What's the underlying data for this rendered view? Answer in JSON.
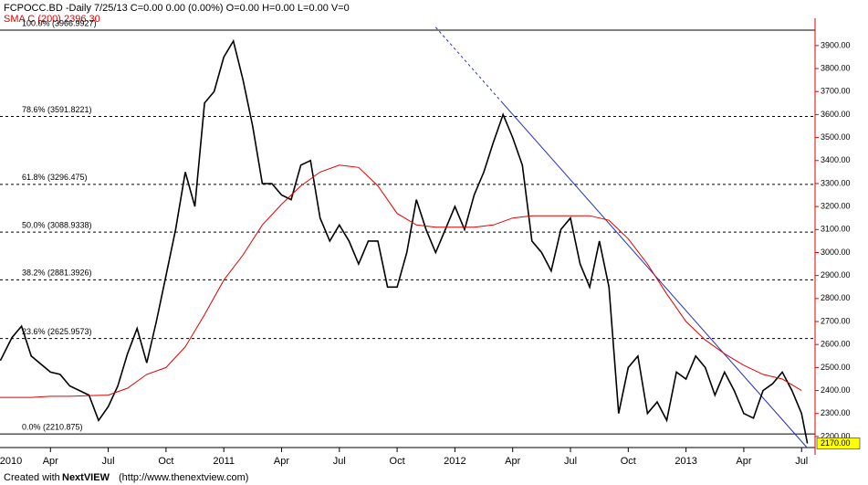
{
  "chart_data": {
    "type": "line",
    "header": "FCPOCC.BD -Daily  7/25/13     C=0.00     0.00 (0.00%)     O=0.00     H=0.00     L=0.00     V=0",
    "footer_prefix": "Created with",
    "footer_brand": "NextVIEW",
    "footer_url": "(http://www.thenextview.com)",
    "xlim": [
      0.38,
      42.7
    ],
    "xticks": [
      {
        "value": 0,
        "label": "2010"
      },
      {
        "value": 3,
        "label": "Apr"
      },
      {
        "value": 6,
        "label": "Jul"
      },
      {
        "value": 9,
        "label": "Oct"
      },
      {
        "value": 12,
        "label": "2011"
      },
      {
        "value": 15,
        "label": "Apr"
      },
      {
        "value": 18,
        "label": "Jul"
      },
      {
        "value": 21,
        "label": "Oct"
      },
      {
        "value": 24,
        "label": "2012"
      },
      {
        "value": 27,
        "label": "Apr"
      },
      {
        "value": 30,
        "label": "Jul"
      },
      {
        "value": 33,
        "label": "Oct"
      },
      {
        "value": 36,
        "label": "2013"
      },
      {
        "value": 39,
        "label": "Apr"
      },
      {
        "value": 42,
        "label": "Jul"
      }
    ],
    "ylim": [
      2152,
      3979
    ],
    "yticks": [
      {
        "value": 2200,
        "label": "2200.00"
      },
      {
        "value": 2300,
        "label": "2300.00"
      },
      {
        "value": 2400,
        "label": "2400.00"
      },
      {
        "value": 2500,
        "label": "2500.00"
      },
      {
        "value": 2600,
        "label": "2600.00"
      },
      {
        "value": 2700,
        "label": "2700.00"
      },
      {
        "value": 2800,
        "label": "2800.00"
      },
      {
        "value": 2900,
        "label": "2900.00"
      },
      {
        "value": 3000,
        "label": "3000.00"
      },
      {
        "value": 3100,
        "label": "3100.00"
      },
      {
        "value": 3200,
        "label": "3200.00"
      },
      {
        "value": 3300,
        "label": "3300.00"
      },
      {
        "value": 3400,
        "label": "3400.00"
      },
      {
        "value": 3500,
        "label": "3500.00"
      },
      {
        "value": 3600,
        "label": "3600.00"
      },
      {
        "value": 3700,
        "label": "3700.00"
      },
      {
        "value": 3800,
        "label": "3800.00"
      },
      {
        "value": 3900,
        "label": "3900.00"
      }
    ],
    "last_price": {
      "value": 2170,
      "label": "2170.00"
    },
    "fib_levels": [
      {
        "value": 3966.9927,
        "label": "100.0% (3966.9927)"
      },
      {
        "value": 3591.8221,
        "label": "78.6% (3591.8221)"
      },
      {
        "value": 3296.475,
        "label": "61.8% (3296.475)"
      },
      {
        "value": 3088.9338,
        "label": "50.0% (3088.9338)"
      },
      {
        "value": 2881.3926,
        "label": "38.2% (2881.3926)"
      },
      {
        "value": 2625.9573,
        "label": "23.6% (2625.9573)"
      },
      {
        "value": 2210.875,
        "label": "0.0% (2210.875)"
      }
    ],
    "trendline": {
      "color": "#2030c0",
      "x": [
        23.0,
        42.3
      ],
      "values": [
        3980,
        2150
      ]
    },
    "series": [
      {
        "color": "#000000",
        "x": [
          0.4,
          1,
          1.5,
          2,
          3,
          3.5,
          4,
          5,
          5.5,
          6,
          6.5,
          7,
          7.5,
          8,
          8.5,
          9,
          9.5,
          10,
          10.5,
          11,
          11.5,
          12,
          12.5,
          13,
          13.5,
          14,
          14.5,
          15,
          15.5,
          16,
          16.5,
          17,
          17.5,
          18,
          18.5,
          19,
          19.5,
          20,
          20.5,
          21,
          21.5,
          22,
          22.5,
          23,
          23.5,
          24,
          24.5,
          25,
          25.5,
          26,
          26.5,
          27,
          27.5,
          28,
          28.5,
          29,
          29.5,
          30,
          30.5,
          31,
          31.5,
          32,
          32.5,
          33,
          33.5,
          34,
          34.5,
          35,
          35.5,
          36,
          36.5,
          37,
          37.5,
          38,
          38.5,
          39,
          39.5,
          40,
          40.5,
          41,
          41.5,
          42,
          42.3
        ],
        "values": [
          2530,
          2630,
          2680,
          2550,
          2480,
          2470,
          2420,
          2380,
          2270,
          2330,
          2420,
          2560,
          2670,
          2520,
          2700,
          2900,
          3100,
          3350,
          3200,
          3650,
          3700,
          3850,
          3920,
          3750,
          3550,
          3300,
          3300,
          3250,
          3230,
          3380,
          3400,
          3150,
          3050,
          3120,
          3050,
          2950,
          3050,
          3050,
          2850,
          2850,
          3000,
          3230,
          3100,
          3000,
          3100,
          3200,
          3100,
          3250,
          3350,
          3480,
          3600,
          3500,
          3380,
          3050,
          3000,
          2920,
          3100,
          3150,
          2950,
          2850,
          3050,
          2850,
          2300,
          2500,
          2550,
          2300,
          2350,
          2270,
          2480,
          2450,
          2550,
          2500,
          2380,
          2480,
          2400,
          2300,
          2280,
          2400,
          2430,
          2480,
          2400,
          2300,
          2170
        ]
      },
      {
        "name": "SMA C (200) 2396.30",
        "color": "#e00000",
        "x": [
          0,
          1,
          2,
          3,
          4,
          5,
          6,
          7,
          8,
          9,
          10,
          11,
          12,
          13,
          14,
          15,
          16,
          17,
          18,
          19,
          20,
          21,
          22,
          23,
          24,
          25,
          26,
          27,
          28,
          29,
          30,
          31,
          32,
          33,
          34,
          35,
          36,
          37,
          38,
          39,
          40,
          41,
          42
        ],
        "values": [
          2370,
          2370,
          2370,
          2375,
          2375,
          2378,
          2380,
          2410,
          2470,
          2500,
          2590,
          2730,
          2880,
          2990,
          3120,
          3210,
          3290,
          3350,
          3380,
          3370,
          3290,
          3170,
          3120,
          3110,
          3110,
          3110,
          3120,
          3150,
          3160,
          3160,
          3160,
          3160,
          3140,
          3060,
          2950,
          2820,
          2700,
          2620,
          2560,
          2510,
          2470,
          2450,
          2400
        ]
      }
    ]
  }
}
